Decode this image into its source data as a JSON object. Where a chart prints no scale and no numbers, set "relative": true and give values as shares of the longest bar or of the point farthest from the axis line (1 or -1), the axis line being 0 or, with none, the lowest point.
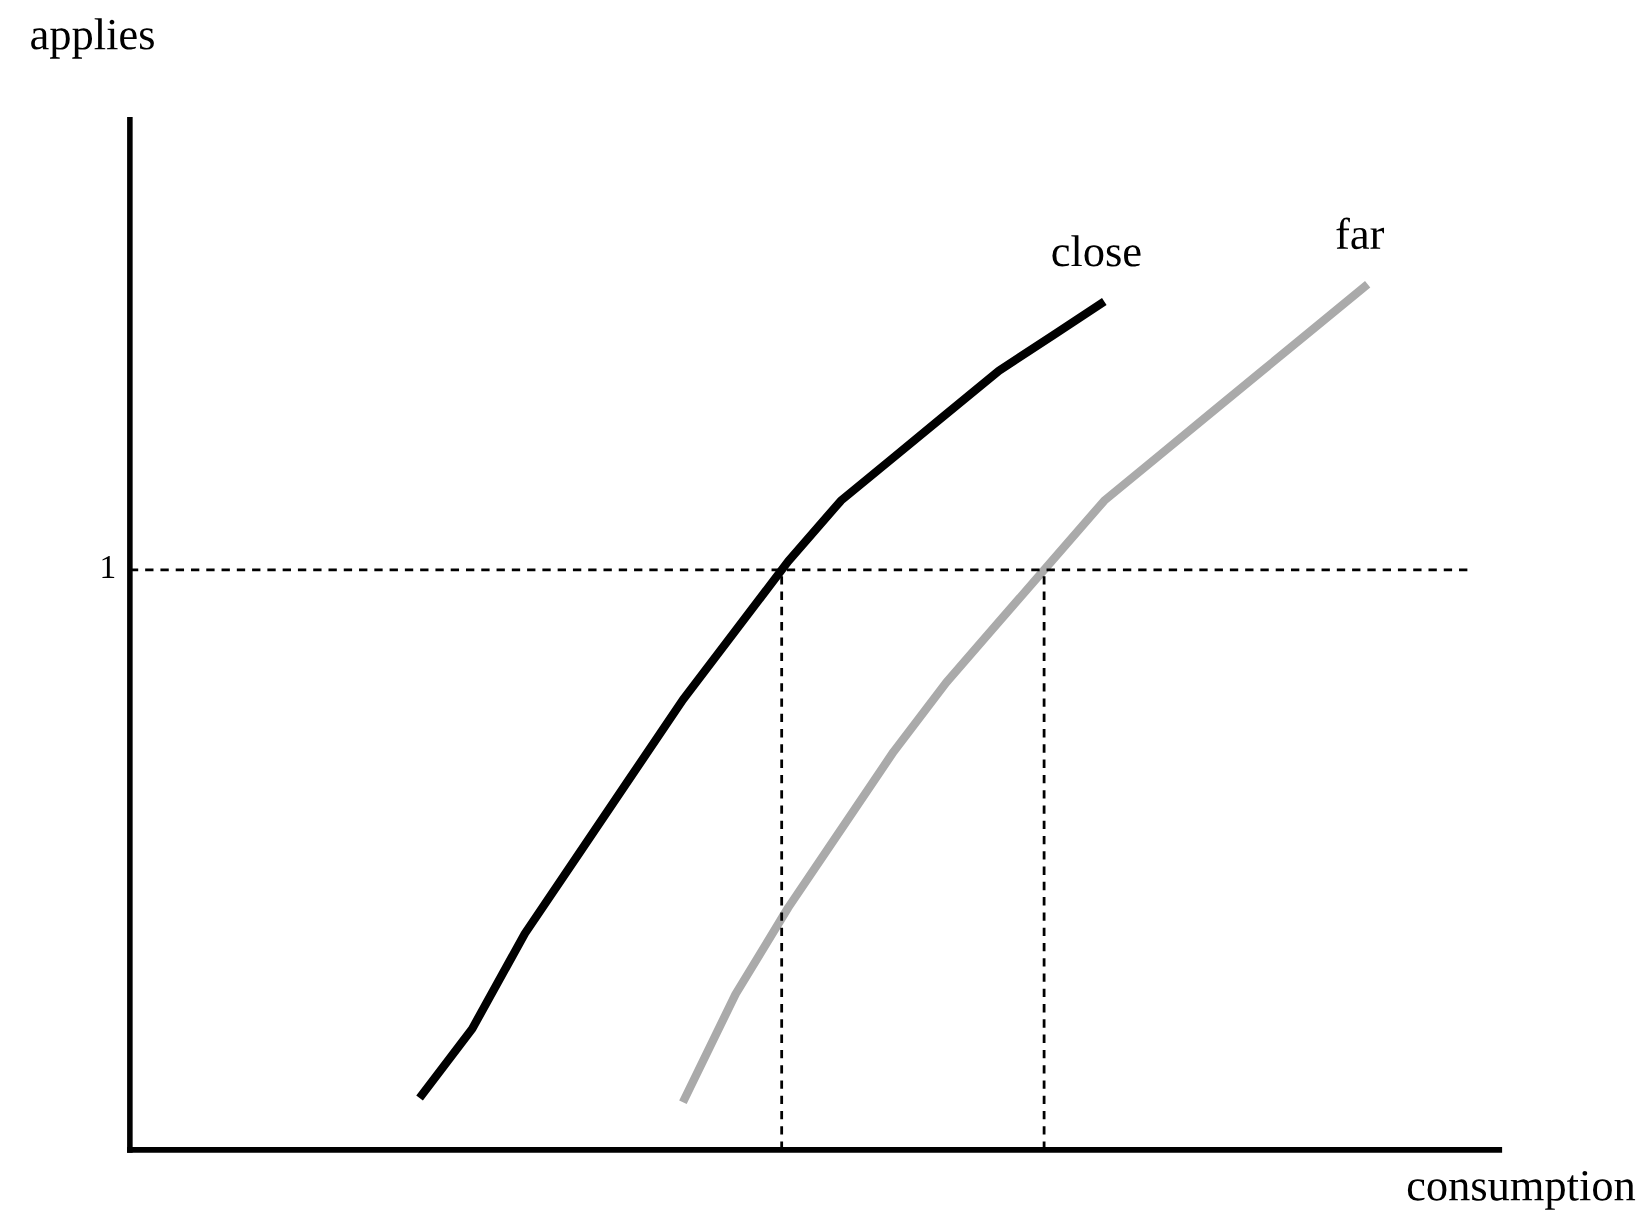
{
  "chart_data": {
    "type": "line",
    "relative": true,
    "annotations": [
      "applies"
    ],
    "xlabel": "consumption",
    "categories": [
      null,
      null,
      null,
      null,
      null,
      null,
      null,
      null,
      null,
      null,
      null,
      null,
      null,
      null,
      null,
      null,
      null,
      null,
      null,
      null,
      null,
      null,
      null,
      null,
      null,
      null
    ],
    "series": [
      {
        "name": "close",
        "color": "#000000",
        "values": [
          null,
          null,
          null,
          null,
          null,
          0.06,
          0.14,
          0.25,
          0.34,
          0.43,
          0.52,
          0.6,
          0.68,
          0.75,
          0.8,
          0.85,
          0.9,
          0.94,
          0.98,
          null,
          null,
          null,
          null,
          null,
          null,
          null
        ]
      },
      {
        "name": "far",
        "color": "#aaaaaa",
        "values": [
          null,
          null,
          null,
          null,
          null,
          null,
          null,
          null,
          null,
          null,
          0.055,
          0.18,
          0.28,
          0.37,
          0.46,
          0.54,
          0.61,
          0.68,
          0.75,
          0.8,
          0.85,
          0.9,
          0.95,
          1.0,
          null,
          null
        ]
      }
    ],
    "ref_lines": [
      {
        "axis": "y",
        "value": 0.67,
        "label": "1",
        "color": "#000000",
        "line_style": "dashed"
      }
    ],
    "grid": false,
    "legend": false,
    "marker": "none",
    "line_style": "solid"
  }
}
